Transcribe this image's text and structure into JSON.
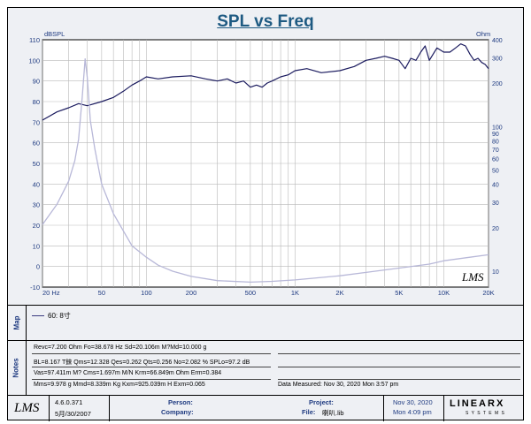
{
  "chart_data": {
    "type": "line",
    "title": "SPL vs Freq",
    "left_unit": "dBSPL",
    "right_unit": "Ohm",
    "xscale": "log",
    "xlim": [
      20,
      20000
    ],
    "ylim_left": [
      -10,
      110
    ],
    "ylim_right": [
      0,
      400
    ],
    "x_ticks": [
      "20 Hz",
      "50",
      "100",
      "200",
      "500",
      "1K",
      "2K",
      "5K",
      "10K",
      "20K"
    ],
    "x_tick_values": [
      20,
      50,
      100,
      200,
      500,
      1000,
      2000,
      5000,
      10000,
      20000
    ],
    "left_ticks": [
      "110",
      "100",
      "90",
      "80",
      "70",
      "60",
      "50",
      "40",
      "30",
      "20",
      "10",
      "0",
      "-10"
    ],
    "right_ticks": [
      "400",
      "300",
      "200",
      "100",
      "90",
      "80",
      "70",
      "60",
      "50",
      "40",
      "30",
      "20",
      "10"
    ],
    "grid": true,
    "series": [
      {
        "name": "60: 8寸",
        "axis": "left",
        "color": "#1a1a5e",
        "x": [
          20,
          25,
          30,
          35,
          40,
          50,
          60,
          70,
          80,
          90,
          100,
          120,
          150,
          200,
          250,
          300,
          350,
          400,
          450,
          500,
          550,
          600,
          650,
          700,
          800,
          900,
          1000,
          1200,
          1500,
          2000,
          2500,
          3000,
          3500,
          4000,
          4500,
          5000,
          5500,
          6000,
          6500,
          7000,
          7500,
          8000,
          9000,
          10000,
          11000,
          12000,
          13000,
          14000,
          15000,
          16000,
          17000,
          18000,
          19000,
          20000
        ],
        "y": [
          71,
          75,
          77,
          79,
          78,
          80,
          82,
          85,
          88,
          90,
          92,
          91,
          92,
          92.5,
          91,
          90,
          91,
          89,
          90,
          87,
          88,
          87,
          89,
          90,
          92,
          93,
          95,
          96,
          94,
          95,
          97,
          100,
          101,
          102,
          101,
          100,
          96,
          101,
          100,
          104,
          107,
          100,
          106,
          104,
          104,
          106,
          108,
          107,
          103,
          100,
          101,
          99,
          98,
          96
        ]
      },
      {
        "name": "Impedance",
        "axis": "right",
        "color": "#b8b8d8",
        "x": [
          20,
          25,
          30,
          33,
          35,
          37,
          38.7,
          40,
          42,
          45,
          50,
          60,
          70,
          80,
          100,
          120,
          150,
          200,
          300,
          500,
          700,
          1000,
          2000,
          3000,
          5000,
          8000,
          10000,
          15000,
          20000
        ],
        "y": [
          21,
          29,
          42,
          58,
          82,
          160,
          295,
          220,
          110,
          70,
          40,
          25,
          19,
          15,
          12.5,
          11,
          10,
          9.2,
          8.6,
          8.4,
          8.5,
          8.7,
          9.3,
          9.8,
          10.5,
          11.2,
          11.8,
          12.5,
          13
        ]
      }
    ]
  },
  "legend": {
    "label": "60: 8寸"
  },
  "side_labels": {
    "map": "Map",
    "notes": "Notes"
  },
  "watermark": "LMS",
  "notes": {
    "line1": "Revc=7.200 Ohm  Fo=38.678 Hz  Sd=20.106m M?Md=10.000 g",
    "line2": "BL=8.167 T錸  Qms=12.328  Qes=0.262  Qts=0.256  No=2.082 %  SPLo=97.2 dB",
    "line3": "Vas=97.411m M? Cms=1.697m M/N  Krm=66.849m Ohm  Erm=0.384",
    "line4": "Mms=9.978 g  Mmd=8.339m Kg  Kxm=925.039m H  Exm=0.065",
    "measured": "Data Measured: Nov 30, 2020  Mon  3:57 pm"
  },
  "footer": {
    "logo": "LMS",
    "version": "4.6.0.371",
    "version_date": "5月/30/2007",
    "person_label": "Person:",
    "company_label": "Company:",
    "project_label": "Project:",
    "file_label": "File:",
    "file_value": "喇叭.lib",
    "date": "Nov 30, 2020",
    "time": "Mon  4:09 pm",
    "brand": "LINEARX",
    "brand_sub": "S Y S T E M S"
  }
}
